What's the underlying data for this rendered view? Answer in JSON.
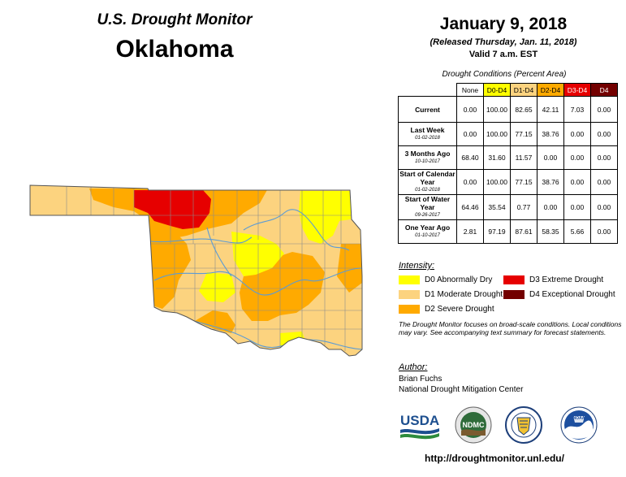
{
  "header": {
    "title": "U.S. Drought Monitor",
    "state": "Oklahoma",
    "date": "January 9, 2018",
    "released": "(Released Thursday, Jan. 11, 2018)",
    "valid": "Valid 7 a.m. EST"
  },
  "table": {
    "caption": "Drought Conditions (Percent Area)",
    "columns": [
      {
        "label": "None",
        "color": "#ffffff"
      },
      {
        "label": "D0-D4",
        "color": "#ffff00"
      },
      {
        "label": "D1-D4",
        "color": "#fcd37f"
      },
      {
        "label": "D2-D4",
        "color": "#ffaa00"
      },
      {
        "label": "D3-D4",
        "color": "#e60000"
      },
      {
        "label": "D4",
        "color": "#730000"
      }
    ],
    "rows": [
      {
        "label": "Current",
        "sub": "",
        "values": [
          "0.00",
          "100.00",
          "82.65",
          "42.11",
          "7.03",
          "0.00"
        ]
      },
      {
        "label": "Last Week",
        "sub": "01-02-2018",
        "values": [
          "0.00",
          "100.00",
          "77.15",
          "38.76",
          "0.00",
          "0.00"
        ]
      },
      {
        "label": "3 Months Ago",
        "sub": "10-10-2017",
        "values": [
          "68.40",
          "31.60",
          "11.57",
          "0.00",
          "0.00",
          "0.00"
        ]
      },
      {
        "label": "Start of Calendar Year",
        "sub": "01-02-2018",
        "values": [
          "0.00",
          "100.00",
          "77.15",
          "38.76",
          "0.00",
          "0.00"
        ]
      },
      {
        "label": "Start of Water Year",
        "sub": "09-26-2017",
        "values": [
          "64.46",
          "35.54",
          "0.77",
          "0.00",
          "0.00",
          "0.00"
        ]
      },
      {
        "label": "One Year Ago",
        "sub": "01-10-2017",
        "values": [
          "2.81",
          "97.19",
          "87.61",
          "58.35",
          "5.66",
          "0.00"
        ]
      }
    ]
  },
  "legend": {
    "title": "Intensity:",
    "items": [
      {
        "label": "D0 Abnormally Dry",
        "color": "#ffff00"
      },
      {
        "label": "D1 Moderate Drought",
        "color": "#fcd37f"
      },
      {
        "label": "D2 Severe Drought",
        "color": "#ffaa00"
      },
      {
        "label": "D3 Extreme Drought",
        "color": "#e60000"
      },
      {
        "label": "D4 Exceptional Drought",
        "color": "#730000"
      }
    ]
  },
  "note": "The Drought Monitor focuses on broad-scale conditions. Local conditions may vary. See accompanying text summary for forecast statements.",
  "author": {
    "title": "Author:",
    "name": "Brian Fuchs",
    "org": "National Drought Mitigation Center"
  },
  "logos": {
    "usda": "USDA",
    "ndmc": "NDMC",
    "noaa": "NOAA"
  },
  "url": "http://droughtmonitor.unl.edu/"
}
